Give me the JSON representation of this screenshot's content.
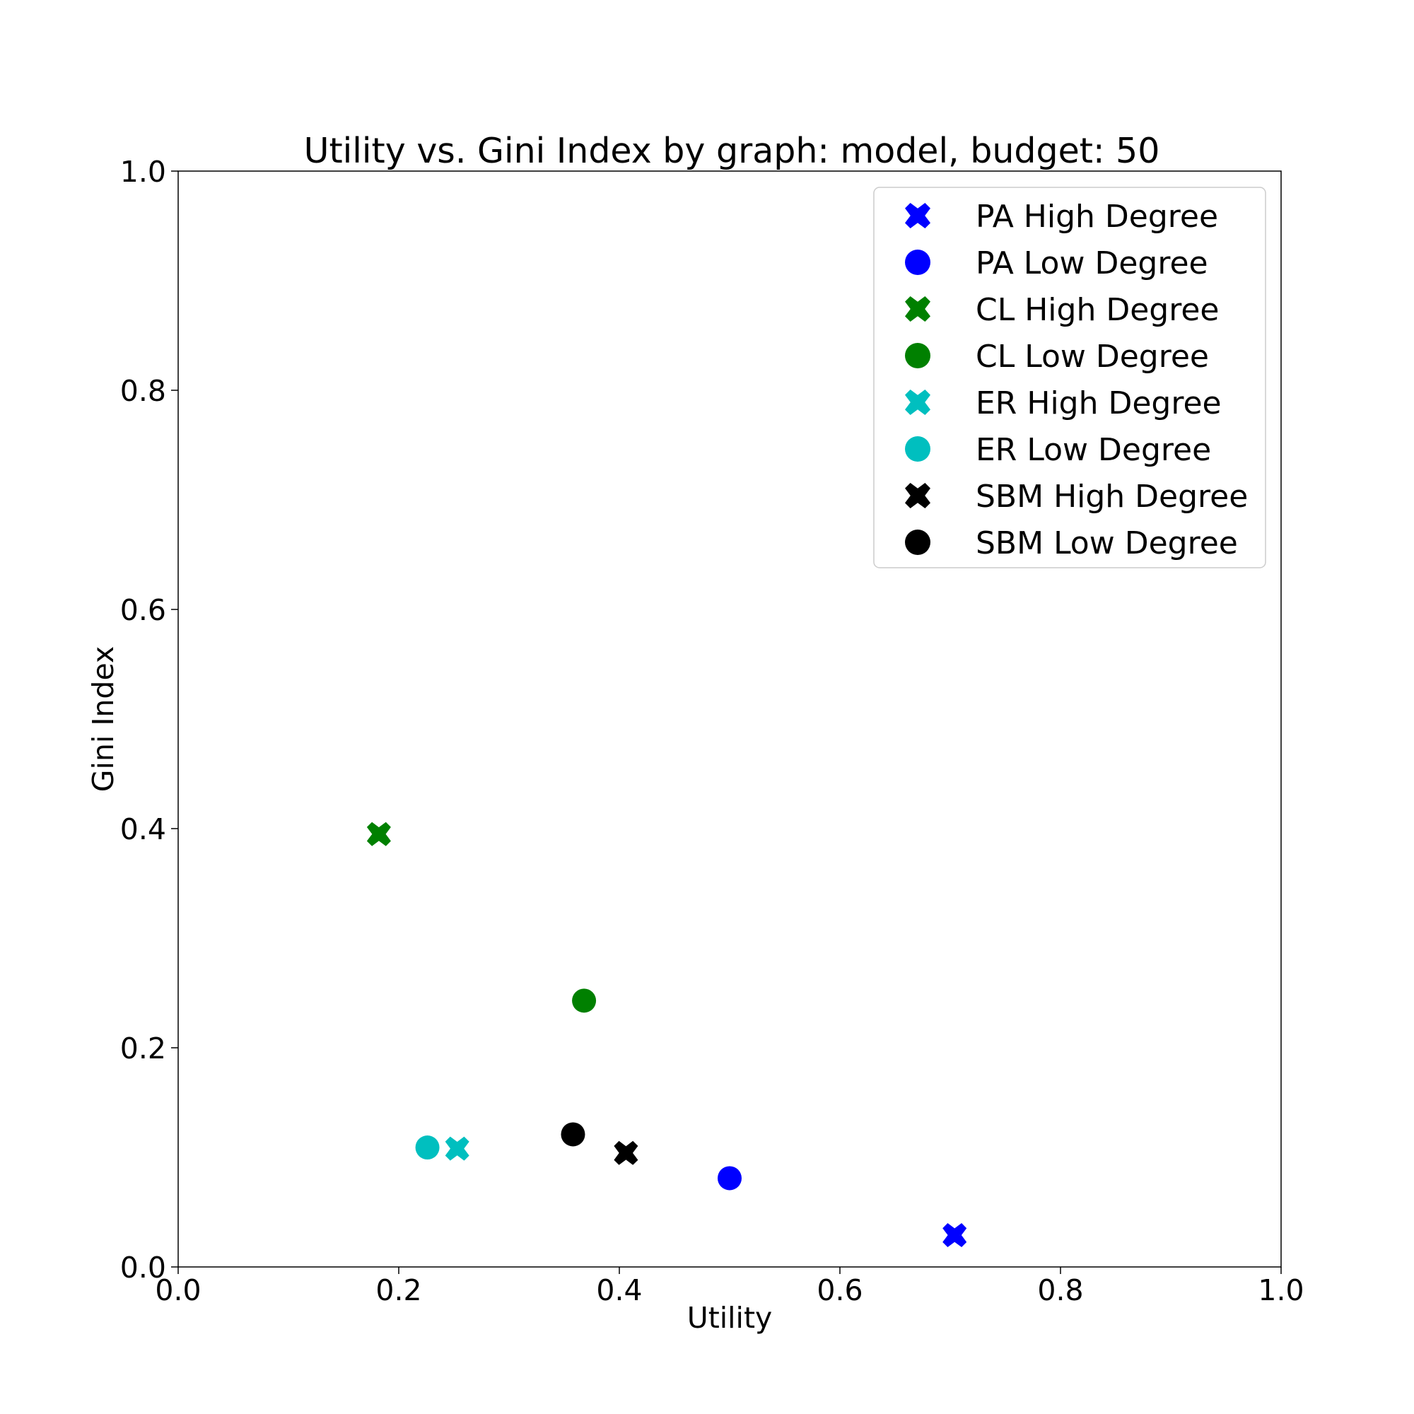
{
  "chart_data": {
    "type": "scatter",
    "title": "Utility vs. Gini Index by graph: model, budget: 50",
    "xlabel": "Utility",
    "ylabel": "Gini Index",
    "xlim": [
      0.0,
      1.0
    ],
    "ylim": [
      0.0,
      1.0
    ],
    "xticks": [
      "0.0",
      "0.2",
      "0.4",
      "0.6",
      "0.8",
      "1.0"
    ],
    "yticks": [
      "0.0",
      "0.2",
      "0.4",
      "0.6",
      "0.8",
      "1.0"
    ],
    "grid": false,
    "legend_position": "top-right",
    "series": [
      {
        "name": "PA High Degree",
        "marker": "x-icon",
        "color": "#0000ff",
        "points": [
          {
            "x": 0.704,
            "y": 0.029
          }
        ]
      },
      {
        "name": "PA Low Degree",
        "marker": "circle-icon",
        "color": "#0000ff",
        "points": [
          {
            "x": 0.5,
            "y": 0.081
          }
        ]
      },
      {
        "name": "CL High Degree",
        "marker": "x-icon",
        "color": "#008000",
        "points": [
          {
            "x": 0.182,
            "y": 0.395
          }
        ]
      },
      {
        "name": "CL Low Degree",
        "marker": "circle-icon",
        "color": "#008000",
        "points": [
          {
            "x": 0.368,
            "y": 0.243
          }
        ]
      },
      {
        "name": "ER High Degree",
        "marker": "x-icon",
        "color": "#00bfbf",
        "points": [
          {
            "x": 0.253,
            "y": 0.108
          }
        ]
      },
      {
        "name": "ER Low Degree",
        "marker": "circle-icon",
        "color": "#00bfbf",
        "points": [
          {
            "x": 0.226,
            "y": 0.109
          }
        ]
      },
      {
        "name": "SBM High Degree",
        "marker": "x-icon",
        "color": "#000000",
        "points": [
          {
            "x": 0.406,
            "y": 0.104
          }
        ]
      },
      {
        "name": "SBM Low Degree",
        "marker": "circle-icon",
        "color": "#000000",
        "points": [
          {
            "x": 0.358,
            "y": 0.121
          }
        ]
      }
    ]
  }
}
